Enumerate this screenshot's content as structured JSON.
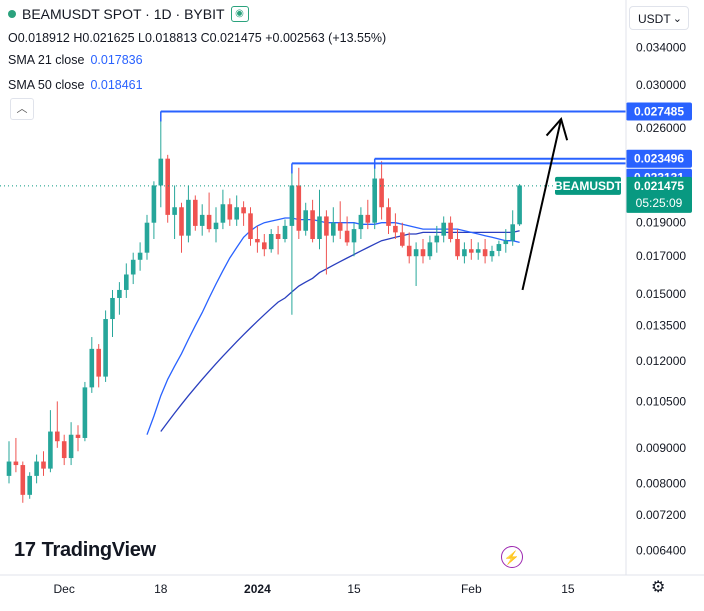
{
  "header": {
    "symbol_line": "BEAMUSDT SPOT · 1D · BYBIT",
    "ohlc": [
      {
        "k": "O",
        "v": "0.018912"
      },
      {
        "k": "H",
        "v": "0.021625"
      },
      {
        "k": "L",
        "v": "0.018813"
      },
      {
        "k": "C",
        "v": "0.021475"
      },
      {
        "k": "",
        "v": "+0.002563 (+13.55%)"
      }
    ],
    "sma21_label": "SMA 21 close",
    "sma21_value": "0.017836",
    "sma50_label": "SMA 50 close",
    "sma50_value": "0.018461",
    "collapse_glyph": "︿"
  },
  "currency": {
    "label": "USDT",
    "chevron": "⌄"
  },
  "logo_text": "TradingView",
  "logo_mark": "17",
  "colors": {
    "up": "#26a69a",
    "down": "#ef5350",
    "sma21": "#2962ff",
    "sma50": "#2a3fbf",
    "level": "#2962ff",
    "price_label": "#089981"
  },
  "chart_data": {
    "type": "candlestick",
    "yscale": "log",
    "ylim": [
      0.006,
      0.0365
    ],
    "y_ticks": [
      "0.034000",
      "0.030000",
      "0.026000",
      "0.019000",
      "0.017000",
      "0.015000",
      "0.013500",
      "0.012000",
      "0.010500",
      "0.009000",
      "0.008000",
      "0.007200",
      "0.006400"
    ],
    "y_tick_values": [
      0.034,
      0.03,
      0.026,
      0.019,
      0.017,
      0.015,
      0.0135,
      0.012,
      0.0105,
      0.009,
      0.008,
      0.0072,
      0.0064
    ],
    "x_ticks": [
      {
        "label": "Dec",
        "i": 8
      },
      {
        "label": "18",
        "i": 22
      },
      {
        "label": "2024",
        "i": 36
      },
      {
        "label": "15",
        "i": 50
      },
      {
        "label": "Feb",
        "i": 67
      },
      {
        "label": "15",
        "i": 81
      }
    ],
    "candles": [
      [
        0.0082,
        0.0092,
        0.008,
        0.0086
      ],
      [
        0.0086,
        0.0093,
        0.0083,
        0.0085
      ],
      [
        0.0085,
        0.0086,
        0.0075,
        0.0077
      ],
      [
        0.0077,
        0.0083,
        0.0076,
        0.0082
      ],
      [
        0.0082,
        0.0088,
        0.008,
        0.0086
      ],
      [
        0.0086,
        0.0089,
        0.0082,
        0.0084
      ],
      [
        0.0084,
        0.0102,
        0.0083,
        0.0095
      ],
      [
        0.0095,
        0.0105,
        0.009,
        0.0092
      ],
      [
        0.0092,
        0.0094,
        0.0085,
        0.0087
      ],
      [
        0.0087,
        0.0098,
        0.0085,
        0.0094
      ],
      [
        0.0094,
        0.0097,
        0.0089,
        0.0093
      ],
      [
        0.0093,
        0.0112,
        0.0092,
        0.011
      ],
      [
        0.011,
        0.013,
        0.0108,
        0.0125
      ],
      [
        0.0125,
        0.0127,
        0.011,
        0.0114
      ],
      [
        0.0114,
        0.0142,
        0.0112,
        0.0138
      ],
      [
        0.0138,
        0.0152,
        0.013,
        0.0148
      ],
      [
        0.0148,
        0.0156,
        0.014,
        0.0152
      ],
      [
        0.0152,
        0.0166,
        0.0148,
        0.016
      ],
      [
        0.016,
        0.0172,
        0.0155,
        0.0168
      ],
      [
        0.0168,
        0.0178,
        0.0162,
        0.0172
      ],
      [
        0.0172,
        0.0195,
        0.0168,
        0.019
      ],
      [
        0.019,
        0.0218,
        0.018,
        0.0215
      ],
      [
        0.0215,
        0.0275,
        0.02,
        0.0235
      ],
      [
        0.0235,
        0.0238,
        0.019,
        0.0195
      ],
      [
        0.0195,
        0.0215,
        0.018,
        0.02
      ],
      [
        0.02,
        0.0203,
        0.0172,
        0.0182
      ],
      [
        0.0182,
        0.0215,
        0.0178,
        0.0205
      ],
      [
        0.0205,
        0.0208,
        0.0185,
        0.0188
      ],
      [
        0.0188,
        0.0202,
        0.0182,
        0.0195
      ],
      [
        0.0195,
        0.021,
        0.0184,
        0.0186
      ],
      [
        0.0186,
        0.02,
        0.0178,
        0.019
      ],
      [
        0.019,
        0.0212,
        0.0186,
        0.0202
      ],
      [
        0.0202,
        0.0206,
        0.0188,
        0.0192
      ],
      [
        0.0192,
        0.0208,
        0.0188,
        0.02
      ],
      [
        0.02,
        0.0204,
        0.0188,
        0.0196
      ],
      [
        0.0196,
        0.02,
        0.0176,
        0.018
      ],
      [
        0.018,
        0.0188,
        0.0172,
        0.0178
      ],
      [
        0.0178,
        0.0183,
        0.017,
        0.0174
      ],
      [
        0.0174,
        0.0186,
        0.0172,
        0.0183
      ],
      [
        0.0183,
        0.0188,
        0.0171,
        0.018
      ],
      [
        0.018,
        0.0192,
        0.0178,
        0.0188
      ],
      [
        0.0188,
        0.0228,
        0.014,
        0.0215
      ],
      [
        0.0215,
        0.0228,
        0.018,
        0.0185
      ],
      [
        0.0185,
        0.0203,
        0.0182,
        0.0198
      ],
      [
        0.0198,
        0.0205,
        0.0178,
        0.018
      ],
      [
        0.018,
        0.0212,
        0.0174,
        0.0194
      ],
      [
        0.0194,
        0.0198,
        0.016,
        0.0182
      ],
      [
        0.0182,
        0.02,
        0.0178,
        0.019
      ],
      [
        0.019,
        0.0204,
        0.018,
        0.0185
      ],
      [
        0.0185,
        0.0194,
        0.0176,
        0.0178
      ],
      [
        0.0178,
        0.019,
        0.017,
        0.0186
      ],
      [
        0.0186,
        0.02,
        0.018,
        0.0195
      ],
      [
        0.0195,
        0.0205,
        0.0186,
        0.019
      ],
      [
        0.019,
        0.0232,
        0.0186,
        0.022
      ],
      [
        0.022,
        0.0233,
        0.0192,
        0.02
      ],
      [
        0.02,
        0.0206,
        0.0183,
        0.0188
      ],
      [
        0.0188,
        0.0196,
        0.018,
        0.0184
      ],
      [
        0.0184,
        0.019,
        0.0175,
        0.0176
      ],
      [
        0.0176,
        0.0184,
        0.0166,
        0.017
      ],
      [
        0.017,
        0.0178,
        0.0154,
        0.0174
      ],
      [
        0.0174,
        0.018,
        0.0166,
        0.017
      ],
      [
        0.017,
        0.0182,
        0.0168,
        0.0178
      ],
      [
        0.0178,
        0.0188,
        0.0172,
        0.0182
      ],
      [
        0.0182,
        0.0194,
        0.0178,
        0.019
      ],
      [
        0.019,
        0.0194,
        0.0178,
        0.018
      ],
      [
        0.018,
        0.0186,
        0.0168,
        0.017
      ],
      [
        0.017,
        0.0178,
        0.0166,
        0.0174
      ],
      [
        0.0174,
        0.018,
        0.0168,
        0.0172
      ],
      [
        0.0172,
        0.0178,
        0.0168,
        0.0174
      ],
      [
        0.0174,
        0.018,
        0.0166,
        0.017
      ],
      [
        0.017,
        0.0176,
        0.0167,
        0.0173
      ],
      [
        0.0173,
        0.0179,
        0.017,
        0.0177
      ],
      [
        0.0177,
        0.0186,
        0.0172,
        0.0179
      ],
      [
        0.0179,
        0.0198,
        0.0176,
        0.0189
      ],
      [
        0.0189,
        0.0216,
        0.0188,
        0.0215
      ]
    ],
    "sma21": [
      null,
      null,
      null,
      null,
      null,
      null,
      null,
      null,
      null,
      null,
      null,
      null,
      null,
      null,
      null,
      null,
      null,
      null,
      null,
      null,
      0.0094,
      0.01,
      0.0107,
      0.0113,
      0.0118,
      0.0123,
      0.0129,
      0.0135,
      0.0141,
      0.0148,
      0.0155,
      0.0162,
      0.0169,
      0.0175,
      0.0181,
      0.0185,
      0.0188,
      0.019,
      0.0191,
      0.0192,
      0.0193,
      0.0193,
      0.0192,
      0.0192,
      0.0192,
      0.0191,
      0.019,
      0.019,
      0.019,
      0.019,
      0.019,
      0.0189,
      0.0189,
      0.0189,
      0.019,
      0.019,
      0.019,
      0.0189,
      0.0188,
      0.0187,
      0.0186,
      0.0186,
      0.0186,
      0.0186,
      0.0186,
      0.0186,
      0.0185,
      0.0184,
      0.0183,
      0.0182,
      0.0181,
      0.018,
      0.0179,
      0.0179,
      0.0178
    ],
    "sma50": [
      null,
      null,
      null,
      null,
      null,
      null,
      null,
      null,
      null,
      null,
      null,
      null,
      null,
      null,
      null,
      null,
      null,
      null,
      null,
      null,
      null,
      null,
      0.0095,
      0.0098,
      0.0101,
      0.0104,
      0.0107,
      0.011,
      0.0113,
      0.0116,
      0.0119,
      0.0122,
      0.0125,
      0.0128,
      0.0131,
      0.0134,
      0.0137,
      0.014,
      0.0143,
      0.0146,
      0.0148,
      0.0151,
      0.0154,
      0.0156,
      0.0158,
      0.0161,
      0.0163,
      0.0165,
      0.0167,
      0.0169,
      0.0171,
      0.0173,
      0.0175,
      0.0177,
      0.0179,
      0.018,
      0.0181,
      0.0182,
      0.0183,
      0.0183,
      0.0184,
      0.0184,
      0.0184,
      0.0184,
      0.0184,
      0.0184,
      0.0184,
      0.0184,
      0.0184,
      0.0184,
      0.0184,
      0.0184,
      0.0184,
      0.0184,
      0.0185
    ],
    "levels": [
      {
        "value": 0.027485,
        "label": "0.027485",
        "start_i": 22
      },
      {
        "value": 0.023496,
        "label": "0.023496",
        "start_i": 53
      },
      {
        "value": 0.023131,
        "label": "0.023131",
        "start_i": 41
      }
    ],
    "last_price": {
      "symbol": "BEAMUSDT",
      "value": 0.021475,
      "label": "0.021475",
      "countdown": "05:25:09"
    },
    "arrow": {
      "from_i": 75,
      "from_v": 0.0152,
      "to_i": 79,
      "to_v": 0.0268
    }
  }
}
